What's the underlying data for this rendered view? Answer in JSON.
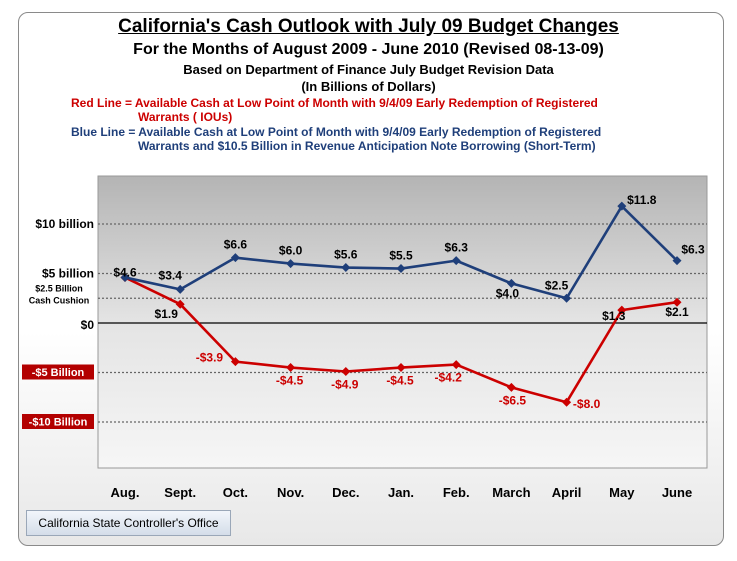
{
  "title": "California's Cash Outlook with July 09 Budget Changes",
  "subtitle1": "For the Months of August 2009 - June 2010 (Revised 08-13-09)",
  "subtitle2": "Based on Department of Finance July Budget Revision Data",
  "subtitle3": "(In Billions of Dollars)",
  "legend": {
    "red_line1": "Red Line = Available Cash at Low Point of Month with 9/4/09 Early Redemption of Registered",
    "red_line2": "Warrants ( IOUs)",
    "blue_line1": "Blue Line = Available Cash at Low Point of Month with 9/4/09 Early Redemption of Registered",
    "blue_line2": "Warrants and $10.5 Billion in Revenue Anticipation Note Borrowing (Short-Term)",
    "red_color": "#cc0000",
    "blue_color": "#1f3f7a"
  },
  "footer": "California State Controller's Office",
  "chart_data": {
    "type": "line",
    "categories": [
      "Aug.",
      "Sept.",
      "Oct.",
      "Nov.",
      "Dec.",
      "Jan.",
      "Feb.",
      "March",
      "April",
      "May",
      "June"
    ],
    "series": [
      {
        "color": "#1f3f7a",
        "values": [
          4.6,
          3.4,
          6.6,
          6.0,
          5.6,
          5.5,
          6.3,
          4.0,
          2.5,
          11.8,
          6.3
        ],
        "labels": [
          "$4.6",
          "$3.4",
          "$6.6",
          "$6.0",
          "$5.6",
          "$5.5",
          "$6.3",
          "$4.0",
          "$2.5",
          "$11.8",
          "$6.3"
        ]
      },
      {
        "color": "#cc0000",
        "values": [
          4.6,
          1.9,
          -3.9,
          -4.5,
          -4.9,
          -4.5,
          -4.2,
          -6.5,
          -8.0,
          1.3,
          2.1
        ],
        "labels": [
          "",
          "$1.9",
          "-$3.9",
          "-$4.5",
          "-$4.9",
          "-$4.5",
          "-$4.2",
          "-$6.5",
          "-$8.0",
          "$1.3",
          "$2.1"
        ]
      }
    ],
    "reference_lines": [
      {
        "value": 10,
        "label": "$10 billion"
      },
      {
        "value": 5,
        "label": "$5 billion"
      },
      {
        "value": 2.5,
        "label": "$2.5 Billion Cash Cushion"
      },
      {
        "value": 0,
        "label": "$0"
      },
      {
        "value": -5,
        "label": "-$5 Billion"
      },
      {
        "value": -10,
        "label": "-$10 Billion"
      }
    ],
    "ylim": [
      -15.5,
      15.5
    ],
    "grid": false,
    "legend": "top"
  }
}
